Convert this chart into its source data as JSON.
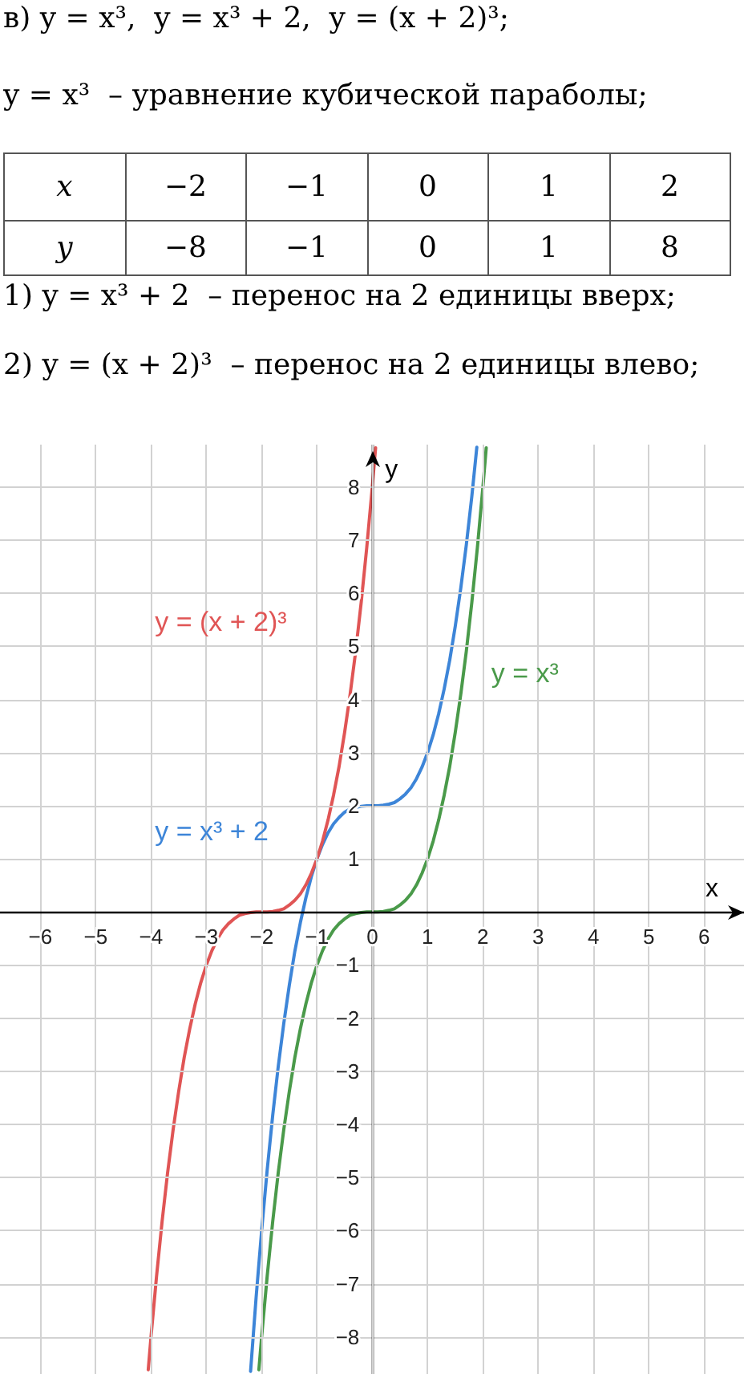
{
  "chart_data": [
    {
      "type": "other",
      "title": "в) y = x³,  y = x³ + 2,  y = (x + 2)³;",
      "annotations": [
        "y = x³  – уравнение кубической параболы;",
        "1) y = x³ + 2  – перенос на 2 единицы вверх;",
        "2) y = (x + 2)³  – перенос на 2 единицы влево;"
      ],
      "xlabel": "x",
      "ylabel": "y",
      "categories": [
        "−2",
        "−1",
        "0",
        "1",
        "2"
      ],
      "values": [
        -8,
        -1,
        0,
        1,
        8
      ],
      "data_labels": true
    },
    {
      "type": "line",
      "xlabel": "x",
      "ylabel": "y",
      "xlim": [
        -6.73,
        6.72
      ],
      "ylim": [
        -8.7,
        8.8
      ],
      "xticks": [
        {
          "value": -6,
          "label": "−6"
        },
        {
          "value": -5,
          "label": "−5"
        },
        {
          "value": -4,
          "label": "−4"
        },
        {
          "value": -3,
          "label": "−3"
        },
        {
          "value": -2,
          "label": "−2"
        },
        {
          "value": -1,
          "label": "−1"
        },
        0,
        1,
        2,
        3,
        4,
        5,
        6
      ],
      "yticks": [
        {
          "value": -8,
          "label": "−8"
        },
        {
          "value": -7,
          "label": "−7"
        },
        {
          "value": -6,
          "label": "−6"
        },
        {
          "value": -5,
          "label": "−5"
        },
        {
          "value": -4,
          "label": "−4"
        },
        {
          "value": -3,
          "label": "−3"
        },
        {
          "value": -2,
          "label": "−2"
        },
        {
          "value": -1,
          "label": "−1"
        },
        {
          "value": 0,
          "label": null
        },
        1,
        2,
        3,
        4,
        5,
        6,
        7,
        8
      ],
      "grid": true,
      "marker": "none",
      "line_style": "solid",
      "series": [
        {
          "name": "y = x³",
          "color": "#4a9a4a",
          "x": [
            -2.05,
            -2,
            -1.9,
            -1.8,
            -1.7,
            -1.6,
            -1.5,
            -1.4,
            -1.3,
            -1.2,
            -1.1,
            -1,
            -0.9,
            -0.8,
            -0.7,
            -0.6,
            -0.5,
            -0.4,
            -0.3,
            -0.2,
            -0.1,
            0,
            0.1,
            0.2,
            0.3,
            0.4,
            0.5,
            0.6,
            0.7,
            0.8,
            0.9,
            1,
            1.1,
            1.2,
            1.3,
            1.4,
            1.5,
            1.6,
            1.7,
            1.8,
            1.9,
            2,
            2.06
          ],
          "values": [
            -8.62,
            -8,
            -6.86,
            -5.83,
            -4.91,
            -4.1,
            -3.38,
            -2.74,
            -2.2,
            -1.73,
            -1.33,
            -1,
            -0.73,
            -0.51,
            -0.34,
            -0.22,
            -0.13,
            -0.06,
            -0.03,
            -0.01,
            0,
            0,
            0,
            0.01,
            0.03,
            0.06,
            0.13,
            0.22,
            0.34,
            0.51,
            0.73,
            1,
            1.33,
            1.73,
            2.2,
            2.74,
            3.38,
            4.1,
            4.91,
            5.83,
            6.86,
            8,
            8.74
          ]
        },
        {
          "name": "y = x³ + 2",
          "color": "#3d85d8",
          "x": [
            -2.2,
            -2.1,
            -2,
            -1.9,
            -1.8,
            -1.7,
            -1.6,
            -1.5,
            -1.4,
            -1.3,
            -1.2,
            -1.1,
            -1,
            -0.9,
            -0.8,
            -0.7,
            -0.6,
            -0.5,
            -0.4,
            -0.3,
            -0.2,
            -0.1,
            0,
            0.1,
            0.2,
            0.3,
            0.4,
            0.5,
            0.6,
            0.7,
            0.8,
            0.9,
            1,
            1.1,
            1.2,
            1.3,
            1.4,
            1.5,
            1.6,
            1.7,
            1.8,
            1.89
          ],
          "values": [
            -8.65,
            -7.26,
            -6,
            -4.86,
            -3.83,
            -2.91,
            -2.1,
            -1.38,
            -0.74,
            -0.2,
            0.27,
            0.67,
            1,
            1.27,
            1.49,
            1.66,
            1.78,
            1.88,
            1.94,
            1.97,
            1.99,
            2,
            2,
            2,
            2.01,
            2.03,
            2.06,
            2.13,
            2.22,
            2.34,
            2.51,
            2.73,
            3,
            3.33,
            3.73,
            4.2,
            4.74,
            5.38,
            6.1,
            6.91,
            7.83,
            8.75
          ]
        },
        {
          "name": "y = (x + 2)³",
          "color": "#e05555",
          "x": [
            -4.05,
            -4,
            -3.9,
            -3.8,
            -3.7,
            -3.6,
            -3.5,
            -3.4,
            -3.3,
            -3.2,
            -3.1,
            -3,
            -2.9,
            -2.8,
            -2.7,
            -2.6,
            -2.5,
            -2.4,
            -2.3,
            -2.2,
            -2.1,
            -2,
            -1.9,
            -1.8,
            -1.7,
            -1.6,
            -1.5,
            -1.4,
            -1.3,
            -1.2,
            -1.1,
            -1,
            -0.9,
            -0.8,
            -0.7,
            -0.6,
            -0.5,
            -0.4,
            -0.3,
            -0.2,
            -0.1,
            0,
            0.06
          ],
          "values": [
            -8.62,
            -8,
            -6.86,
            -5.83,
            -4.91,
            -4.1,
            -3.38,
            -2.74,
            -2.2,
            -1.73,
            -1.33,
            -1,
            -0.73,
            -0.51,
            -0.34,
            -0.22,
            -0.13,
            -0.06,
            -0.03,
            -0.01,
            0,
            0,
            0,
            0.01,
            0.03,
            0.06,
            0.13,
            0.22,
            0.34,
            0.51,
            0.73,
            1,
            1.33,
            1.73,
            2.2,
            2.74,
            3.38,
            4.1,
            4.91,
            5.83,
            6.86,
            8,
            8.74
          ]
        }
      ]
    }
  ]
}
